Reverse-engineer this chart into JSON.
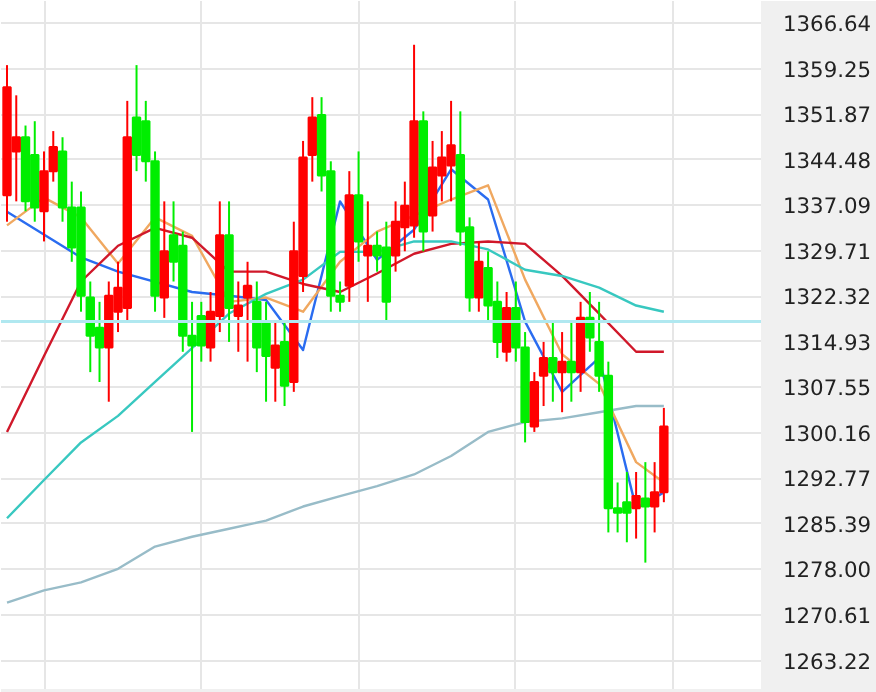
{
  "chart_data": {
    "type": "candlestick",
    "categories": [
      null,
      null,
      null,
      null,
      null,
      null,
      null,
      null,
      null,
      null,
      null,
      null,
      null,
      null,
      null,
      null,
      null,
      null,
      null,
      null,
      null,
      null,
      null,
      null,
      null,
      null,
      null,
      null,
      null,
      null,
      null,
      null,
      null,
      null,
      null,
      null,
      null,
      null,
      null,
      null,
      null,
      null,
      null,
      null,
      null,
      null,
      null,
      null,
      null,
      null,
      null,
      null,
      null,
      null,
      null,
      null,
      null,
      null,
      null,
      null,
      null,
      null,
      null,
      null,
      null,
      null,
      null,
      null,
      null,
      null,
      null,
      null,
      null,
      null,
      null,
      null,
      null,
      null,
      null,
      null,
      null,
      null
    ],
    "ohlc": [
      [
        1338.7,
        1359.8,
        1334.4,
        1356.2
      ],
      [
        1345.8,
        1354.9,
        1337.7,
        1348.1
      ],
      [
        1348.1,
        1350.0,
        1336.1,
        1337.7
      ],
      [
        1345.2,
        1350.7,
        1334.4,
        1336.7
      ],
      [
        1336.1,
        1345.8,
        1331.2,
        1342.6
      ],
      [
        1342.6,
        1349.1,
        1340.9,
        1346.5
      ],
      [
        1345.8,
        1348.1,
        1334.4,
        1336.7
      ],
      [
        1336.7,
        1340.9,
        1327.9,
        1330.2
      ],
      [
        1336.7,
        1339.3,
        1319.8,
        1322.4
      ],
      [
        1322.1,
        1324.7,
        1310.0,
        1315.9
      ],
      [
        1317.2,
        1321.4,
        1308.4,
        1314.0
      ],
      [
        1314.0,
        1324.7,
        1305.2,
        1322.4
      ],
      [
        1319.8,
        1327.9,
        1316.5,
        1323.7
      ],
      [
        1320.4,
        1354.0,
        1318.2,
        1348.1
      ],
      [
        1351.3,
        1359.8,
        1342.6,
        1345.2
      ],
      [
        1350.7,
        1354.0,
        1340.9,
        1344.2
      ],
      [
        1344.2,
        1345.8,
        1319.8,
        1322.4
      ],
      [
        1322.1,
        1337.7,
        1318.8,
        1329.6
      ],
      [
        1332.2,
        1337.7,
        1324.7,
        1327.9
      ],
      [
        1330.5,
        1332.8,
        1313.3,
        1315.9
      ],
      [
        1315.9,
        1321.4,
        1300.3,
        1314.3
      ],
      [
        1319.1,
        1321.4,
        1311.7,
        1314.3
      ],
      [
        1314.0,
        1323.0,
        1311.7,
        1319.8
      ],
      [
        1319.1,
        1337.7,
        1316.5,
        1332.2
      ],
      [
        1332.2,
        1337.7,
        1314.9,
        1320.4
      ],
      [
        1319.1,
        1324.7,
        1313.3,
        1320.8
      ],
      [
        1322.1,
        1327.9,
        1311.7,
        1324.0
      ],
      [
        1321.4,
        1324.7,
        1310.0,
        1314.0
      ],
      [
        1318.2,
        1321.4,
        1305.2,
        1312.6
      ],
      [
        1310.7,
        1318.2,
        1305.2,
        1314.3
      ],
      [
        1314.9,
        1318.2,
        1304.5,
        1307.8
      ],
      [
        1308.4,
        1334.4,
        1306.8,
        1329.6
      ],
      [
        1325.6,
        1347.5,
        1323.0,
        1344.8
      ],
      [
        1345.2,
        1354.6,
        1340.9,
        1351.3
      ],
      [
        1351.7,
        1354.6,
        1339.3,
        1341.9
      ],
      [
        1342.6,
        1344.2,
        1319.8,
        1322.4
      ],
      [
        1322.4,
        1324.7,
        1319.8,
        1321.4
      ],
      [
        1324.0,
        1342.6,
        1321.4,
        1338.7
      ],
      [
        1338.7,
        1345.8,
        1327.9,
        1331.2
      ],
      [
        1328.9,
        1337.7,
        1321.4,
        1330.5
      ],
      [
        1330.5,
        1332.8,
        1326.3,
        1328.9
      ],
      [
        1330.2,
        1334.4,
        1318.2,
        1321.4
      ],
      [
        1328.9,
        1337.7,
        1326.3,
        1334.4
      ],
      [
        1333.5,
        1340.9,
        1329.6,
        1337.0
      ],
      [
        1333.8,
        1363.1,
        1331.8,
        1350.7
      ],
      [
        1350.7,
        1352.3,
        1329.6,
        1332.8
      ],
      [
        1335.4,
        1347.5,
        1332.8,
        1343.2
      ],
      [
        1341.9,
        1349.1,
        1337.7,
        1344.8
      ],
      [
        1343.5,
        1354.0,
        1337.7,
        1346.8
      ],
      [
        1345.2,
        1352.3,
        1330.5,
        1332.8
      ],
      [
        1333.5,
        1335.1,
        1319.8,
        1322.1
      ],
      [
        1322.1,
        1331.2,
        1319.8,
        1327.9
      ],
      [
        1326.9,
        1329.6,
        1318.2,
        1320.8
      ],
      [
        1321.4,
        1324.7,
        1312.3,
        1314.9
      ],
      [
        1313.3,
        1323.0,
        1311.7,
        1320.4
      ],
      [
        1320.4,
        1324.7,
        1311.7,
        1314.0
      ],
      [
        1314.0,
        1316.5,
        1298.6,
        1301.9
      ],
      [
        1301.2,
        1310.0,
        1300.3,
        1308.4
      ],
      [
        1309.4,
        1314.9,
        1304.5,
        1312.3
      ],
      [
        1312.3,
        1318.2,
        1305.2,
        1310.0
      ],
      [
        1310.0,
        1316.5,
        1303.5,
        1311.7
      ],
      [
        1311.7,
        1318.2,
        1305.2,
        1310.0
      ],
      [
        1310.0,
        1321.4,
        1306.8,
        1318.8
      ],
      [
        1318.8,
        1323.0,
        1313.3,
        1315.6
      ],
      [
        1314.9,
        1321.4,
        1306.8,
        1309.4
      ],
      [
        1309.4,
        1311.7,
        1284.0,
        1287.9
      ],
      [
        1287.9,
        1292.1,
        1284.0,
        1287.2
      ],
      [
        1288.9,
        1293.8,
        1282.4,
        1287.2
      ],
      [
        1287.9,
        1293.8,
        1283.0,
        1289.9
      ],
      [
        1289.5,
        1295.4,
        1279.1,
        1288.2
      ],
      [
        1288.2,
        1295.4,
        1284.0,
        1290.5
      ],
      [
        1290.5,
        1304.2,
        1288.9,
        1301.2
      ],
      null,
      null,
      null,
      null,
      null,
      null,
      null,
      null,
      null,
      null
    ],
    "colors": [
      "#ff0000",
      "#ff0000",
      "#00ee00",
      "#00ee00",
      "#ff0000",
      "#ff0000",
      "#00ee00",
      "#00ee00",
      "#00ee00",
      "#00ee00",
      "#00ee00",
      "#ff0000",
      "#ff0000",
      "#ff0000",
      "#00ee00",
      "#00ee00",
      "#00ee00",
      "#ff0000",
      "#00ee00",
      "#00ee00",
      "#00ee00",
      "#00ee00",
      "#ff0000",
      "#ff0000",
      "#00ee00",
      "#ff0000",
      "#ff0000",
      "#00ee00",
      "#00ee00",
      "#ff0000",
      "#00ee00",
      "#ff0000",
      "#ff0000",
      "#ff0000",
      "#00ee00",
      "#00ee00",
      "#00ee00",
      "#ff0000",
      "#00ee00",
      "#ff0000",
      "#00ee00",
      "#00ee00",
      "#ff0000",
      "#ff0000",
      "#ff0000",
      "#00ee00",
      "#ff0000",
      "#ff0000",
      "#ff0000",
      "#00ee00",
      "#00ee00",
      "#ff0000",
      "#00ee00",
      "#00ee00",
      "#ff0000",
      "#00ee00",
      "#00ee00",
      "#ff0000",
      "#ff0000",
      "#00ee00",
      "#ff0000",
      "#00ee00",
      "#ff0000",
      "#00ee00",
      "#00ee00",
      "#00ee00",
      "#00ee00",
      "#00ee00",
      "#ff0000",
      "#00ee00",
      "#ff0000",
      "#ff0000",
      null,
      null,
      null,
      null,
      null,
      null,
      null,
      null,
      null,
      null
    ],
    "series": [
      {
        "type": "line",
        "color": "#2a6cf0",
        "values": [
          1336.0,
          null,
          null,
          null,
          null,
          null,
          null,
          null,
          1328.6,
          null,
          null,
          null,
          1326.3,
          null,
          null,
          null,
          null,
          null,
          null,
          null,
          1323.0,
          null,
          null,
          null,
          1322.4,
          null,
          null,
          null,
          1321.7,
          null,
          null,
          null,
          1313.6,
          null,
          null,
          null,
          1337.7,
          null,
          null,
          null,
          1328.2,
          null,
          null,
          null,
          1333.1,
          null,
          null,
          null,
          1342.9,
          null,
          null,
          null,
          1338.0,
          null,
          null,
          null,
          1318.2,
          null,
          null,
          null,
          1306.8,
          null,
          null,
          null,
          1312.3,
          null,
          null,
          null,
          1287.9,
          null,
          null,
          1290.5,
          null,
          null,
          null,
          null,
          null,
          null,
          null,
          null,
          null,
          null
        ]
      },
      {
        "type": "line",
        "color": "#f0a860",
        "values": [
          1333.8,
          null,
          null,
          null,
          1338.3,
          null,
          null,
          null,
          1335.1,
          null,
          null,
          null,
          1327.6,
          null,
          null,
          null,
          1335.1,
          null,
          null,
          null,
          1332.1,
          null,
          null,
          null,
          1321.4,
          null,
          null,
          null,
          1322.1,
          null,
          null,
          null,
          1319.8,
          null,
          null,
          null,
          1327.9,
          null,
          null,
          null,
          1332.8,
          null,
          null,
          null,
          null,
          null,
          null,
          null,
          1338.0,
          null,
          null,
          null,
          1340.3,
          null,
          null,
          null,
          1325.0,
          null,
          null,
          null,
          1312.9,
          null,
          null,
          null,
          1308.1,
          null,
          null,
          null,
          1295.4,
          null,
          null,
          1292.1,
          null,
          null,
          null,
          null,
          null,
          null,
          null,
          null,
          null,
          null
        ]
      },
      {
        "type": "line",
        "color": "#d0182a",
        "values": [
          1300.3,
          null,
          null,
          null,
          1312.6,
          null,
          null,
          null,
          1324.7,
          null,
          null,
          null,
          1330.5,
          null,
          null,
          null,
          1333.4,
          null,
          null,
          null,
          1331.8,
          null,
          null,
          null,
          1326.3,
          null,
          null,
          null,
          1326.3,
          null,
          null,
          null,
          1324.3,
          null,
          null,
          null,
          1323.0,
          null,
          null,
          null,
          1326.0,
          null,
          null,
          null,
          1329.2,
          null,
          null,
          null,
          1330.8,
          null,
          null,
          null,
          1331.2,
          null,
          null,
          null,
          1330.8,
          null,
          null,
          null,
          1325.6,
          null,
          null,
          null,
          1319.5,
          null,
          null,
          null,
          1313.3,
          null,
          null,
          1313.3,
          null,
          null,
          null,
          null,
          null,
          null,
          null,
          null,
          null,
          null
        ]
      },
      {
        "type": "line",
        "color": "#38c8c0",
        "values": [
          1286.3,
          null,
          null,
          null,
          1292.5,
          null,
          null,
          null,
          1298.6,
          null,
          null,
          null,
          1302.9,
          null,
          null,
          null,
          1308.4,
          null,
          null,
          null,
          1313.9,
          null,
          null,
          null,
          1319.5,
          null,
          null,
          null,
          1322.7,
          null,
          null,
          null,
          1325.0,
          null,
          null,
          null,
          1329.5,
          null,
          null,
          null,
          1329.5,
          null,
          null,
          null,
          1331.2,
          null,
          null,
          null,
          1331.2,
          null,
          null,
          null,
          1329.9,
          null,
          null,
          null,
          1326.6,
          null,
          null,
          null,
          1325.6,
          null,
          null,
          null,
          1323.7,
          null,
          null,
          null,
          1320.8,
          null,
          null,
          1319.8,
          null,
          null,
          null,
          null,
          null,
          null,
          null,
          null,
          null,
          null
        ]
      },
      {
        "type": "line",
        "color": "#98bcc8",
        "values": [
          1272.6,
          null,
          null,
          null,
          1274.6,
          null,
          null,
          null,
          1275.9,
          null,
          null,
          null,
          1278.1,
          null,
          null,
          null,
          1281.7,
          null,
          null,
          null,
          1283.3,
          null,
          null,
          null,
          1284.6,
          null,
          null,
          null,
          1285.9,
          null,
          null,
          null,
          1288.2,
          null,
          null,
          null,
          1289.9,
          null,
          null,
          null,
          1291.5,
          null,
          null,
          null,
          1293.4,
          null,
          null,
          null,
          1296.4,
          null,
          null,
          null,
          1300.3,
          null,
          null,
          null,
          1301.9,
          null,
          null,
          null,
          1302.5,
          null,
          null,
          null,
          1303.5,
          null,
          null,
          null,
          1304.5,
          null,
          null,
          1304.5,
          null,
          null,
          null,
          null,
          null,
          null,
          null,
          null,
          null,
          null
        ]
      }
    ],
    "ylim": [
      1258.6,
      1370.2
    ],
    "yticks": [
      1263.22,
      1270.61,
      {
        "value": 1278,
        "label": "1278.00"
      },
      1285.39,
      1292.77,
      1300.16,
      1307.55,
      1314.93,
      1322.32,
      1329.71,
      1337.09,
      1344.48,
      1351.87,
      1359.25,
      1366.64
    ],
    "ref_lines": [
      {
        "axis": "y",
        "value": 1318.2,
        "color": "#b0e8f0"
      }
    ],
    "grid": true,
    "tick_labels": "y"
  }
}
